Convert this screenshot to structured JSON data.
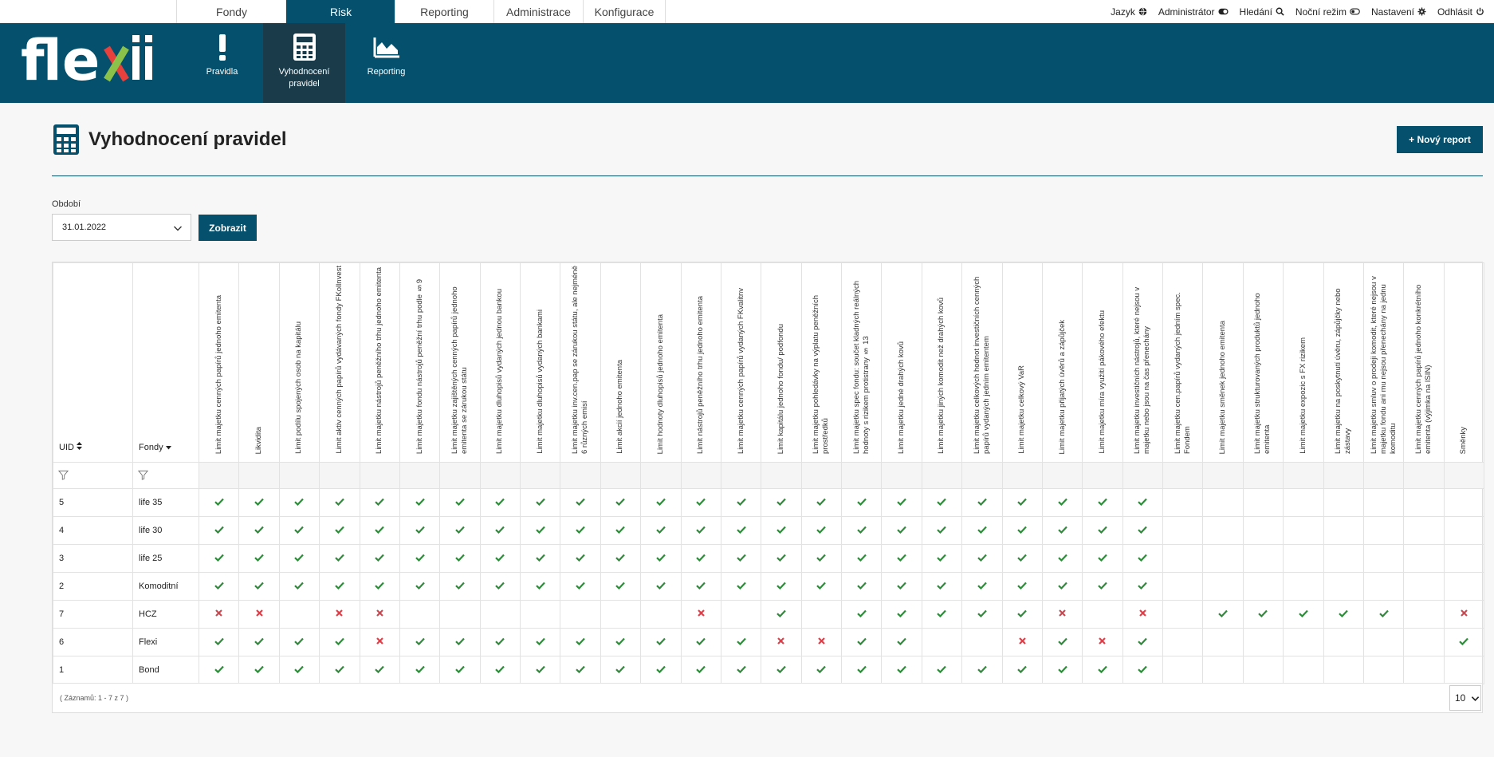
{
  "top_tabs": [
    {
      "label": "Fondy",
      "active": false
    },
    {
      "label": "Risk",
      "active": true
    },
    {
      "label": "Reporting",
      "active": false
    },
    {
      "label": "Administrace",
      "active": false
    },
    {
      "label": "Konfigurace",
      "active": false
    }
  ],
  "top_right": {
    "language": "Jazyk",
    "admin": "Administrátor",
    "search": "Hledání",
    "night_mode": "Noční režim",
    "settings": "Nastavení",
    "logout": "Odhlásit"
  },
  "logo": "flexii",
  "modules": [
    {
      "label": "Pravidla",
      "icon": "exclamation-icon",
      "active": false
    },
    {
      "label": "Vyhodnocení pravidel",
      "icon": "calculator-icon",
      "active": true
    },
    {
      "label": "Reporting",
      "icon": "area-chart-icon",
      "active": false
    }
  ],
  "page": {
    "title": "Vyhodnocení pravidel",
    "new_report_label": "+ Nový report",
    "period_label": "Období",
    "period_value": "31.01.2022",
    "show_label": "Zobrazit"
  },
  "table": {
    "col_uid": "UID",
    "col_fondy": "Fondy",
    "rules": [
      "Limit majetku cenných papírů jednoho emitenta",
      "Likvidita",
      "Limit podílu spojených osob na kapitálu",
      "Limit aktiv cenných papírů vydávaných fondy FKollnvest",
      "Limit majetku nástrojů peněžního trhu jednoho emitenta",
      "Limit majetku fondu nástrojů peněžní trhu podle §9",
      "Limit majetku zajištěných cenných papírů jednoho emitenta se zárukou státu",
      "Limit majetku dluhopisů vydaných jednou bankou",
      "Limit majetku dluhopisů vydaných bankami",
      "Limit majetku inv.cen.pap se zárukou státu, ale nejméně 6 různých emisí",
      "Limit akcií jednoho emitenta",
      "Limit hodnoty dluhopisů jednoho emitenta",
      "Limit nástrojů peněžního trhu jednoho emitenta",
      "Limit majetku cenných papírů vydaných FKvalitnv",
      "Limit kapitálu jednoho fondu/ podfondu",
      "Limit majetku pohledávky na výplatu peněžních prostředků",
      "Limit majetku spec fondu: součet kladných reálných hodnoty s rizikem protistrany § 13",
      "Limit majetku jedné drahých kovů",
      "Limit majetku jiných komodit než drahých kovů",
      "Limit majetku celkových hodnot investičních cenných papírů vydaných jedním emitentem",
      "Limit majetku celkový VaR",
      "Limit majetku přijatých úvěrů a zápůjček",
      "Limit majetku míra využití pákového efektu",
      "Limit majetku investičních nástrojů, které nejsou v majetku nebo jsou na čas přenechány",
      "Limit majetku cen.papírů vydaných jedním spec. Fondem",
      "Limit majetku směnek jednoho emitenta",
      "Limit majetku strukturovaných produktů jednoho emitenta",
      "Limit majetku expozic s FX rizikem",
      "Limit majetku na poskytnutí úvěru, zápůjčky nebo zástavy",
      "Limit majetku smluv o prodeji komodit, které nejsou v majetku fondu ani mu nejsou přenechány na jednu komoditu",
      "Limit majetku cenných papírů jednoho konkrétního emitenta (výjimka na ISIN)",
      "Směnky"
    ],
    "rows": [
      {
        "uid": "5",
        "fond": "life 35",
        "marks": "vvvvvvvvvvvvvvvvvvvvvvvv--------"
      },
      {
        "uid": "4",
        "fond": "life 30",
        "marks": "vvvvvvvvvvvvvvvvvvvvvvvv--------"
      },
      {
        "uid": "3",
        "fond": "life 25",
        "marks": "vvvvvvvvvvvvvvvvvvvvvvvv--------"
      },
      {
        "uid": "2",
        "fond": "Komoditní",
        "marks": "vvvvvvvvvvvvvvvvvvvvvvvv--------"
      },
      {
        "uid": "7",
        "fond": "HCZ",
        "marks": "xx-xx-------x-v-vvvvvx-x-vvvvv-x"
      },
      {
        "uid": "6",
        "fond": "Flexi",
        "marks": "vvvvxvvvvvvvvvxxvv--xvxv-------v"
      },
      {
        "uid": "1",
        "fond": "Bond",
        "marks": "vvvvvvvvvvvvvvvvvvvvvvvv--------"
      }
    ],
    "footer": "( Záznamů: 1 - 7 z 7 )",
    "page_size": "10"
  },
  "colors": {
    "brand": "#04506d",
    "ok": "#2e8b3a",
    "error": "#d9424b"
  }
}
